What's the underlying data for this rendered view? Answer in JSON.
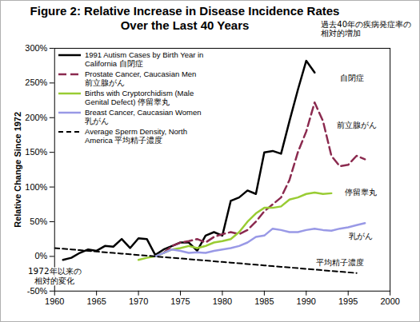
{
  "chart_data": {
    "type": "line",
    "title": "Figure 2: Relative Increase in Disease Incidence Rates\nOver the Last 40 Years",
    "subtitle": "過去40年の疾病発症率の\n相対的増加",
    "ylabel": "Relative Change Since 1972",
    "x": [
      1960,
      1961,
      1962,
      1963,
      1964,
      1965,
      1966,
      1967,
      1968,
      1969,
      1970,
      1971,
      1972,
      1973,
      1974,
      1975,
      1976,
      1977,
      1978,
      1979,
      1980,
      1981,
      1982,
      1983,
      1984,
      1985,
      1986,
      1987,
      1988,
      1989,
      1990,
      1991,
      1992,
      1993,
      1994,
      1995,
      1996,
      1997
    ],
    "series": [
      {
        "name": "1991 Autism Cases by Birth Year in California 自閉症",
        "color": "#000000",
        "line_style": "solid",
        "values": [
          null,
          -5,
          -2,
          5,
          10,
          8,
          15,
          14,
          25,
          12,
          26,
          25,
          2,
          10,
          15,
          20,
          20,
          8,
          30,
          35,
          30,
          80,
          85,
          95,
          90,
          150,
          152,
          148,
          195,
          240,
          282,
          265,
          null,
          null,
          null,
          null,
          null,
          null
        ]
      },
      {
        "name": "Prostate Cancer, Caucasian Men 前立腺がん",
        "color": "#8b2a4f",
        "line_style": "dashed",
        "values": [
          null,
          null,
          null,
          null,
          null,
          null,
          null,
          null,
          null,
          null,
          null,
          null,
          null,
          5,
          15,
          20,
          22,
          25,
          20,
          28,
          32,
          35,
          32,
          38,
          50,
          65,
          75,
          85,
          110,
          150,
          180,
          222,
          195,
          145,
          130,
          132,
          145,
          140
        ]
      },
      {
        "name": "Births with Cryptorchidism (Male Genital Defect) 停留睾丸",
        "color": "#99cc33",
        "line_style": "solid",
        "values": [
          null,
          null,
          null,
          null,
          null,
          null,
          null,
          null,
          null,
          null,
          -5,
          -2,
          0,
          5,
          10,
          12,
          15,
          12,
          15,
          20,
          22,
          25,
          35,
          50,
          62,
          70,
          70,
          72,
          82,
          85,
          90,
          92,
          90,
          91,
          null,
          null,
          null,
          null
        ]
      },
      {
        "name": "Breast Cancer, Caucasian Women 乳がん",
        "color": "#9999e6",
        "line_style": "solid",
        "values": [
          null,
          null,
          null,
          null,
          null,
          null,
          null,
          null,
          null,
          null,
          null,
          null,
          0,
          5,
          10,
          8,
          5,
          6,
          5,
          8,
          10,
          12,
          15,
          20,
          28,
          30,
          40,
          38,
          35,
          35,
          38,
          40,
          38,
          37,
          40,
          42,
          45,
          48
        ]
      },
      {
        "name": "Average Sperm Density, North America 平均精子濃度",
        "color": "#000000",
        "line_style": "dotted",
        "values": [
          12,
          11,
          10,
          9,
          8,
          7,
          6,
          5,
          4,
          3,
          2,
          1,
          0,
          -1,
          -2,
          -3,
          -4,
          -5,
          -6,
          -7,
          -8,
          -9,
          -10,
          -11,
          -12,
          -13,
          -14,
          -15,
          -16,
          -17,
          -18,
          -19,
          -20,
          -21,
          -22,
          -23,
          -24,
          null
        ]
      }
    ],
    "annotations": [
      {
        "text": "自閉症",
        "x": 1995.5,
        "y": 258
      },
      {
        "text": "前立腺がん",
        "x": 1996,
        "y": 190
      },
      {
        "text": "停留睾丸",
        "x": 1996.5,
        "y": 93
      },
      {
        "text": "乳がん",
        "x": 1996.5,
        "y": 30
      },
      {
        "text": "平均精子濃度",
        "x": 1994,
        "y": -8
      },
      {
        "text": "1972年以来の\n相対的変化",
        "x": 1960,
        "y": -28
      }
    ],
    "xlim": [
      1960,
      2000
    ],
    "xticks": [
      1960,
      1965,
      1970,
      1975,
      1980,
      1985,
      1990,
      1995,
      2000
    ],
    "ylim": [
      -50,
      300
    ],
    "yticks": [
      {
        "value": -50,
        "label": "-50%"
      },
      {
        "value": 0,
        "label": "0%"
      },
      {
        "value": 50,
        "label": "50%"
      },
      {
        "value": 100,
        "label": "100%"
      },
      {
        "value": 150,
        "label": "150%"
      },
      {
        "value": 200,
        "label": "200%"
      },
      {
        "value": 250,
        "label": "250%"
      },
      {
        "value": 300,
        "label": "300%"
      }
    ],
    "grid": false,
    "legend": "top-left"
  }
}
